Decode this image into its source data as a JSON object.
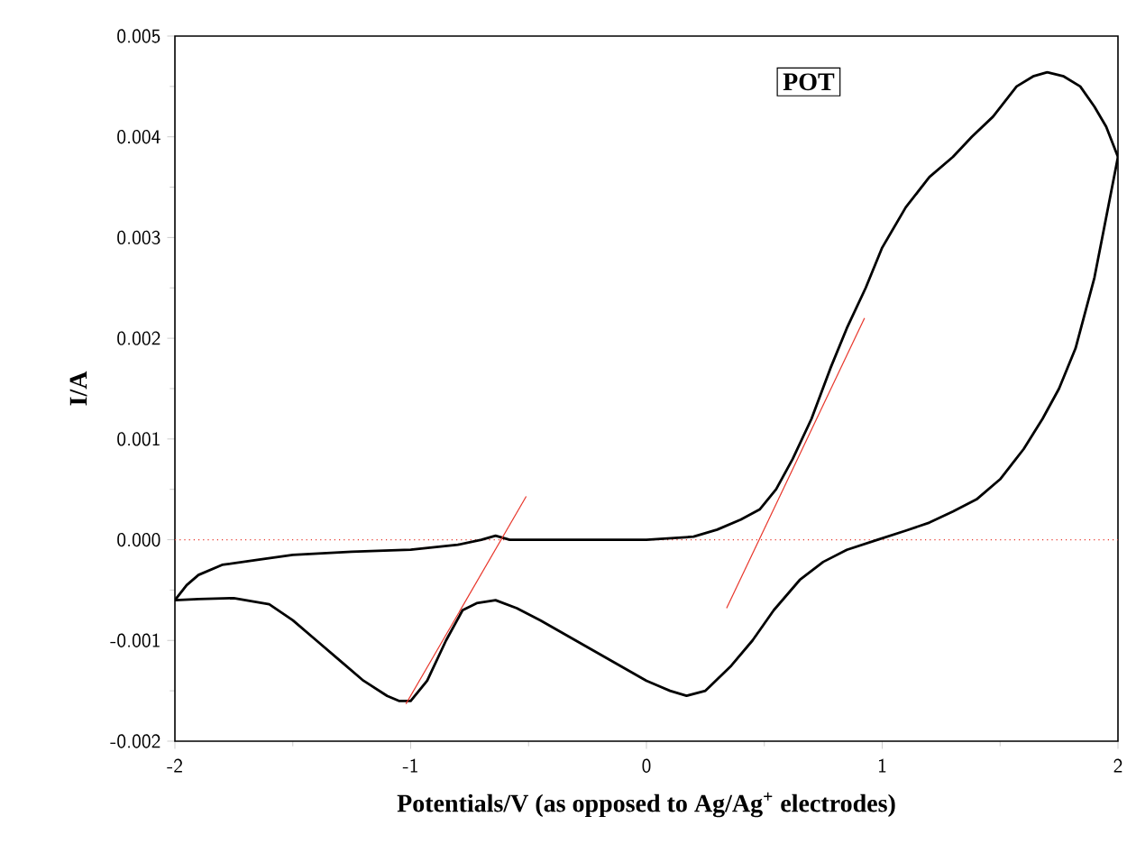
{
  "chart_data": {
    "type": "line",
    "xlabel": "Potentials/V (as opposed to Ag/Ag$^{+}$ electrodes)",
    "ylabel": "I/A",
    "annotations": [
      "POT"
    ],
    "xlim": [
      -2,
      2
    ],
    "ylim": [
      -0.002,
      0.005
    ],
    "xticks": [
      -2,
      -1,
      0,
      1,
      2
    ],
    "yticks": [
      -0.002,
      -0.001,
      {
        "value": 0,
        "label": "0.000"
      },
      0.001,
      0.002,
      0.003,
      0.004,
      0.005
    ],
    "marker": "none",
    "line_style": "solid",
    "ref_lines": [
      {
        "axis": "y",
        "value": 0,
        "color": "#e8362b",
        "line_style": "dotted"
      }
    ],
    "series": [
      {
        "color": "#000000",
        "x": [
          -2.0,
          -1.95,
          -1.9,
          -1.8,
          -1.65,
          -1.5,
          -1.25,
          -1.0,
          -0.8,
          -0.7,
          -0.64,
          -0.58,
          -0.5,
          -0.3,
          0.0,
          0.2,
          0.3,
          0.4,
          0.48,
          0.55,
          0.62,
          0.7,
          0.78,
          0.85,
          0.93,
          1.0,
          1.1,
          1.2,
          1.3,
          1.38,
          1.47,
          1.57,
          1.64,
          1.7,
          1.77,
          1.84,
          1.9,
          1.95,
          2.0
        ],
        "values": [
          -0.0006,
          -0.00045,
          -0.00035,
          -0.00025,
          -0.0002,
          -0.00015,
          -0.00012,
          -0.0001,
          -5e-05,
          0.0,
          4e-05,
          0.0,
          0.0,
          0.0,
          0.0,
          3e-05,
          0.0001,
          0.0002,
          0.0003,
          0.0005,
          0.0008,
          0.0012,
          0.0017,
          0.0021,
          0.0025,
          0.0029,
          0.0033,
          0.0036,
          0.0038,
          0.004,
          0.0042,
          0.0045,
          0.0046,
          0.00464,
          0.0046,
          0.0045,
          0.0043,
          0.0041,
          0.0038
        ]
      },
      {
        "color": "#000000",
        "x": [
          -2.0,
          -1.9,
          -1.75,
          -1.6,
          -1.5,
          -1.4,
          -1.3,
          -1.2,
          -1.1,
          -1.05,
          -1.0,
          -0.93,
          -0.85,
          -0.78,
          -0.72,
          -0.64,
          -0.55,
          -0.45,
          -0.3,
          -0.15,
          0.0,
          0.1,
          0.17,
          0.25,
          0.36,
          0.45,
          0.54,
          0.65,
          0.75,
          0.85,
          0.98,
          1.1,
          1.2,
          1.3,
          1.4,
          1.5,
          1.6,
          1.68,
          1.75,
          1.82,
          1.9,
          1.95,
          2.0
        ],
        "values": [
          -0.0006,
          -0.00059,
          -0.00058,
          -0.00064,
          -0.0008,
          -0.001,
          -0.0012,
          -0.0014,
          -0.00155,
          -0.0016,
          -0.0016,
          -0.0014,
          -0.001,
          -0.0007,
          -0.00063,
          -0.0006,
          -0.00068,
          -0.0008,
          -0.001,
          -0.0012,
          -0.0014,
          -0.0015,
          -0.00155,
          -0.0015,
          -0.00125,
          -0.001,
          -0.0007,
          -0.0004,
          -0.00022,
          -0.0001,
          0.0,
          9e-05,
          0.00017,
          0.00028,
          0.0004,
          0.0006,
          0.0009,
          0.0012,
          0.0015,
          0.0019,
          0.0026,
          0.0032,
          0.0038
        ]
      },
      {
        "color": "#e8362b",
        "x": [
          -1.02,
          -0.51
        ],
        "values": [
          -0.00163,
          0.00043
        ]
      },
      {
        "color": "#e8362b",
        "x": [
          0.34,
          0.925
        ],
        "values": [
          -0.00068,
          0.0022
        ]
      }
    ]
  }
}
